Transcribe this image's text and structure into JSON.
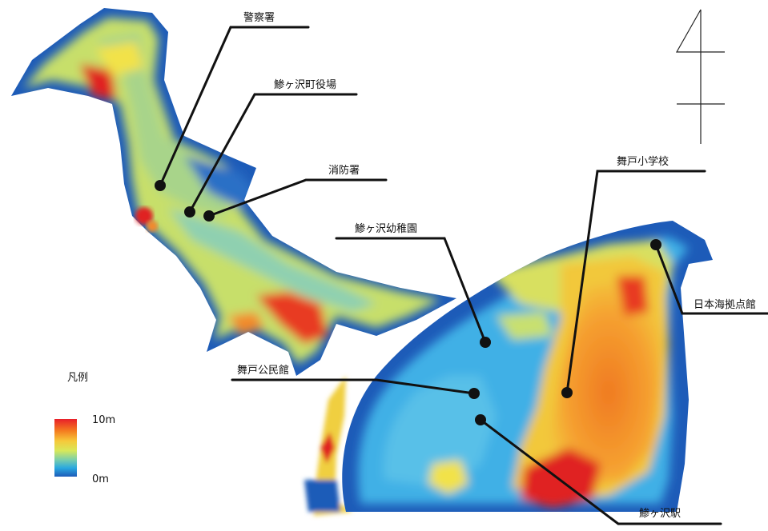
{
  "landmarks": [
    {
      "id": "police",
      "label": "警察署"
    },
    {
      "id": "town-office",
      "label": "鯵ヶ沢町役場"
    },
    {
      "id": "fire-station",
      "label": "消防署"
    },
    {
      "id": "kindergarten",
      "label": "鯵ヶ沢幼稚園"
    },
    {
      "id": "maido-school",
      "label": "舞戸小学校"
    },
    {
      "id": "japan-sea-center",
      "label": "日本海拠点館"
    },
    {
      "id": "maido-hall",
      "label": "舞戸公民館"
    },
    {
      "id": "station",
      "label": "鯵ヶ沢駅"
    }
  ],
  "legend": {
    "title": "凡例",
    "max_label": "10m",
    "min_label": "0m",
    "colors": [
      "#e8202a",
      "#f47a1f",
      "#f6c83a",
      "#d8e85a",
      "#7fd0a8",
      "#2aa8e0",
      "#1d5bb8"
    ]
  },
  "colors": {
    "deep_blue": "#1d5bb8",
    "light_blue": "#3fb0e6",
    "yellow": "#f2e24a",
    "orange": "#f5892a",
    "red": "#e02424"
  }
}
